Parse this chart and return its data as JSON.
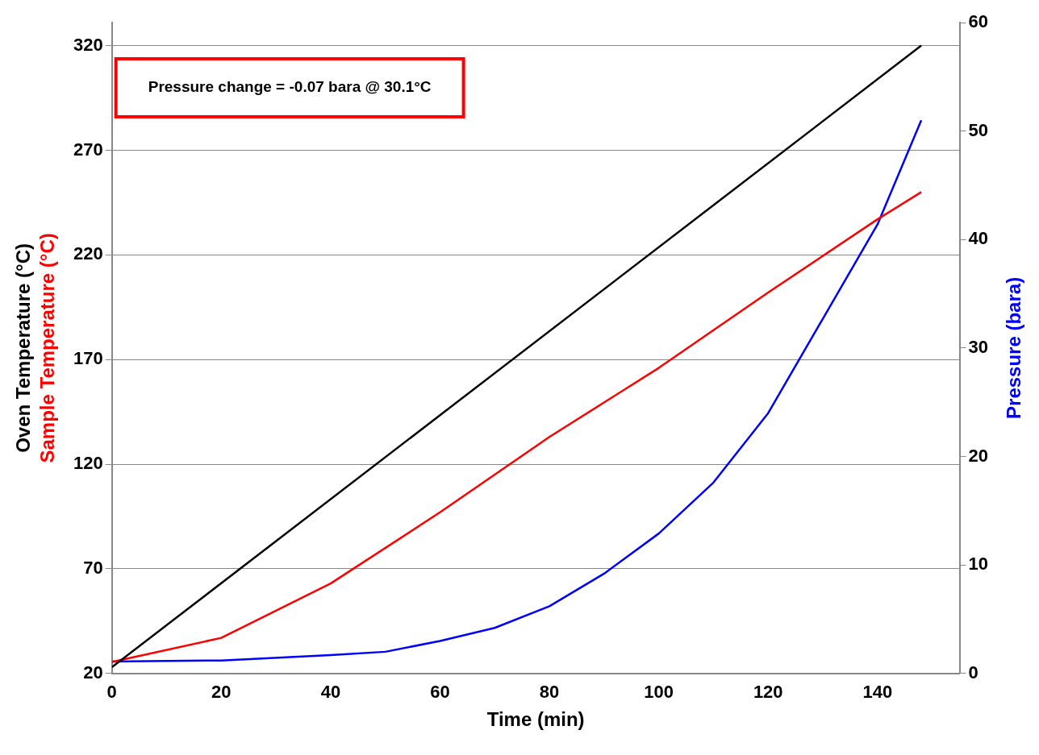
{
  "chart_data": {
    "type": "line",
    "xlabel": "Time (min)",
    "x": [
      0,
      20,
      40,
      60,
      80,
      100,
      120,
      140,
      148
    ],
    "xlim": [
      0,
      155
    ],
    "xticks": [
      0,
      20,
      40,
      60,
      80,
      100,
      120,
      140
    ],
    "ylim": [
      20,
      331
    ],
    "yticks": [
      20,
      70,
      120,
      170,
      220,
      270,
      320
    ],
    "y2lim": [
      0,
      60
    ],
    "y2ticks": [
      0,
      10,
      20,
      30,
      40,
      50,
      60
    ],
    "series": [
      {
        "name": "Oven Temperature (°C)",
        "color": "#000000",
        "x": [
          0,
          148
        ],
        "values": [
          23,
          320
        ]
      },
      {
        "name": "Sample Temperature (°C)",
        "color": "#ff0000",
        "values": [
          25.5,
          37,
          63,
          97,
          133,
          166,
          202,
          237,
          250
        ]
      },
      {
        "name": "Pressure (bara)",
        "color": "#0000ff",
        "axis": "y2",
        "x": [
          0,
          20,
          40,
          50,
          60,
          70,
          80,
          90,
          100,
          110,
          120,
          130,
          140,
          148
        ],
        "values": [
          1.1,
          1.2,
          1.7,
          2.0,
          3.0,
          4.2,
          6.2,
          9.2,
          12.9,
          17.6,
          24,
          32.7,
          41.4,
          51
        ]
      }
    ],
    "annotations": [
      "Pressure change = -0.07 bara @ 30.1°C"
    ],
    "grid": "y",
    "legend": false,
    "marker": "none",
    "line_style": "solid"
  }
}
